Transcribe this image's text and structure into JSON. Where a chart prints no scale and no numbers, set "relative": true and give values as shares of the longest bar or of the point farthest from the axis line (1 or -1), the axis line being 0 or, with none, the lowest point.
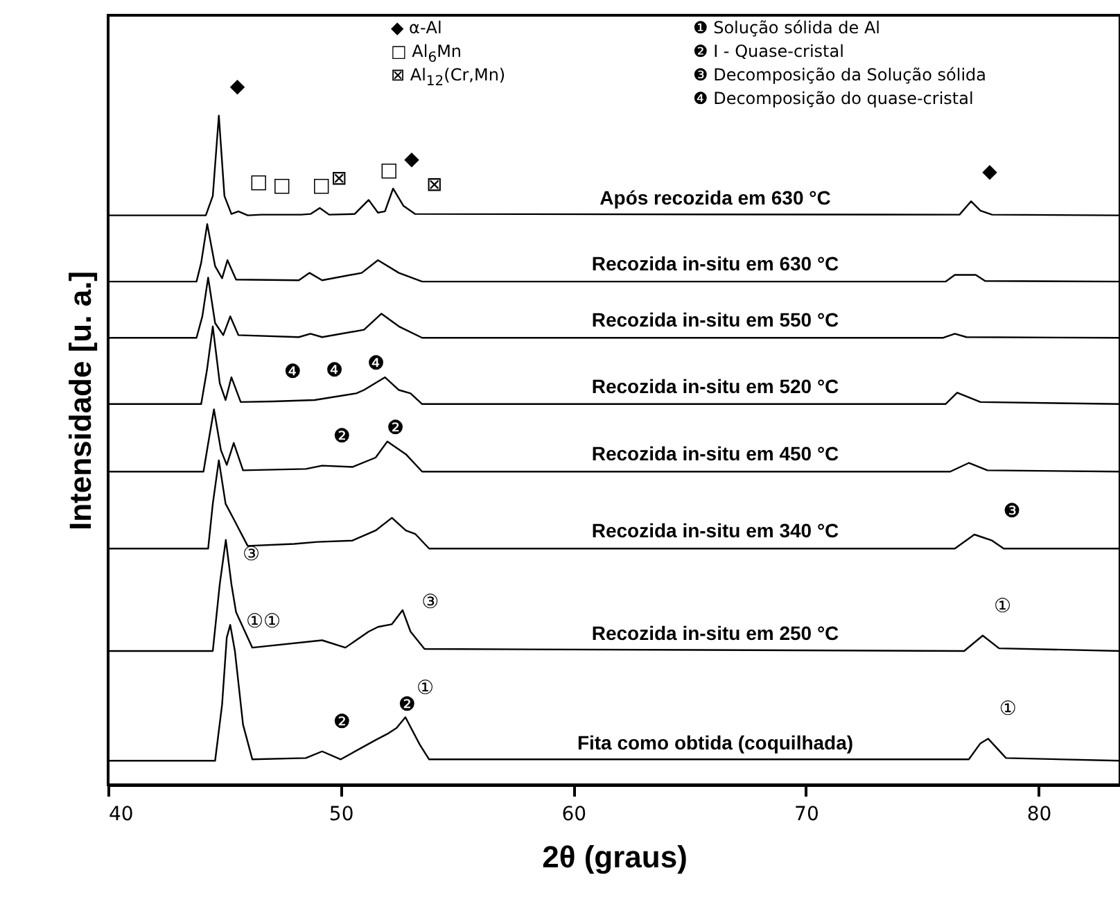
{
  "chart_data": {
    "type": "line",
    "relative": true,
    "xlabel": "2θ (graus)",
    "ylabel": "Intensidade [u. a.]",
    "xlim": [
      40,
      83.5
    ],
    "xticks": [
      40,
      50,
      60,
      70,
      80
    ],
    "series": [
      {
        "name": "Após recozida em 630 °C",
        "color": "#000000",
        "x": [
          40,
          44.2,
          44.5,
          44.76,
          45.0,
          45.3,
          45.6,
          46.0,
          46.6,
          48.3,
          48.7,
          49.1,
          49.5,
          50.6,
          51.2,
          51.6,
          51.9,
          52.25,
          52.7,
          53.2,
          76.6,
          77.1,
          77.5,
          78.0,
          83.5
        ],
        "values": [
          0.851,
          0.851,
          0.88,
          1.0,
          0.88,
          0.853,
          0.857,
          0.851,
          0.852,
          0.852,
          0.853,
          0.862,
          0.852,
          0.853,
          0.874,
          0.855,
          0.857,
          0.891,
          0.865,
          0.853,
          0.852,
          0.872,
          0.858,
          0.852,
          0.851
        ]
      },
      {
        "name": "Recozida in-situ em 630 °C",
        "color": "#000000",
        "x": [
          40,
          43.8,
          44.0,
          44.26,
          44.6,
          44.9,
          45.13,
          45.5,
          48.2,
          48.66,
          49.2,
          50.9,
          51.6,
          52.5,
          53.5,
          76.0,
          76.4,
          77.3,
          77.7,
          83.5
        ],
        "values": [
          0.752,
          0.752,
          0.78,
          0.838,
          0.775,
          0.757,
          0.784,
          0.755,
          0.754,
          0.765,
          0.754,
          0.765,
          0.784,
          0.765,
          0.752,
          0.752,
          0.762,
          0.762,
          0.753,
          0.752
        ]
      },
      {
        "name": "Recozida in-situ em 550 °C",
        "color": "#000000",
        "x": [
          40,
          43.8,
          44.05,
          44.3,
          44.6,
          44.95,
          45.25,
          45.6,
          48.2,
          48.7,
          49.2,
          51.0,
          51.75,
          52.5,
          53.5,
          75.9,
          76.4,
          76.9,
          83.5
        ],
        "values": [
          0.668,
          0.668,
          0.7,
          0.758,
          0.69,
          0.672,
          0.7,
          0.672,
          0.669,
          0.674,
          0.669,
          0.68,
          0.704,
          0.685,
          0.668,
          0.668,
          0.674,
          0.669,
          0.668
        ]
      },
      {
        "name": "Recozida in-situ em 520 °C",
        "color": "#000000",
        "x": [
          40,
          44.0,
          44.25,
          44.5,
          44.8,
          45.05,
          45.3,
          45.7,
          47.08,
          48.88,
          50.67,
          51.0,
          51.9,
          52.5,
          53.0,
          53.5,
          76.0,
          76.5,
          77.5,
          83.5
        ],
        "values": [
          0.569,
          0.569,
          0.62,
          0.685,
          0.6,
          0.575,
          0.609,
          0.572,
          0.573,
          0.575,
          0.585,
          0.59,
          0.609,
          0.59,
          0.585,
          0.569,
          0.569,
          0.586,
          0.572,
          0.569
        ]
      },
      {
        "name": "Recozida in-situ em 450 °C",
        "color": "#000000",
        "x": [
          40,
          44.1,
          44.3,
          44.55,
          44.85,
          45.1,
          45.4,
          45.8,
          48.5,
          49.2,
          50.5,
          51.5,
          52.0,
          52.8,
          53.5,
          76.2,
          77.0,
          77.8,
          83.5
        ],
        "values": [
          0.468,
          0.468,
          0.51,
          0.561,
          0.5,
          0.478,
          0.511,
          0.47,
          0.472,
          0.477,
          0.475,
          0.489,
          0.513,
          0.494,
          0.468,
          0.468,
          0.481,
          0.47,
          0.468
        ]
      },
      {
        "name": "Recozida in-situ em 340 °C",
        "color": "#000000",
        "x": [
          40,
          44.3,
          44.5,
          44.76,
          45.05,
          45.4,
          46.0,
          48.0,
          49.0,
          50.5,
          51.5,
          52.2,
          52.8,
          53.2,
          53.8,
          76.4,
          77.24,
          78.0,
          78.5,
          83.5
        ],
        "values": [
          0.353,
          0.353,
          0.42,
          0.485,
          0.42,
          0.397,
          0.357,
          0.36,
          0.363,
          0.365,
          0.38,
          0.399,
          0.38,
          0.375,
          0.353,
          0.353,
          0.374,
          0.365,
          0.353,
          0.353
        ]
      },
      {
        "name": "Recozida in-situ em 250 °C",
        "color": "#000000",
        "x": [
          40,
          44.5,
          44.8,
          45.06,
          45.3,
          45.5,
          46.2,
          49.2,
          50.2,
          51.2,
          51.6,
          52.2,
          52.66,
          53.0,
          53.6,
          76.8,
          77.6,
          78.3,
          83.5
        ],
        "values": [
          0.2,
          0.2,
          0.3,
          0.366,
          0.3,
          0.258,
          0.205,
          0.216,
          0.205,
          0.229,
          0.236,
          0.24,
          0.261,
          0.229,
          0.203,
          0.2,
          0.223,
          0.204,
          0.2
        ]
      },
      {
        "name": "Fita como obtida (coquilhada)",
        "color": "#000000",
        "x": [
          40,
          44.6,
          44.9,
          45.1,
          45.25,
          45.45,
          45.8,
          46.2,
          48.5,
          49.2,
          50.0,
          51.5,
          52.0,
          52.4,
          52.78,
          53.4,
          53.8,
          77.0,
          77.5,
          77.83,
          78.6,
          83.5
        ],
        "values": [
          0.036,
          0.036,
          0.12,
          0.22,
          0.239,
          0.2,
          0.09,
          0.038,
          0.04,
          0.05,
          0.038,
          0.067,
          0.076,
          0.085,
          0.101,
          0.06,
          0.038,
          0.038,
          0.062,
          0.069,
          0.04,
          0.036
        ]
      }
    ],
    "annotations": [
      "◆ α-Al",
      "□ Al$_{6}$Mn",
      "⊠ Al$_{12}$(Cr,Mn)",
      "❶ Solução sólida de Al",
      "❷ I - Quase-cristal",
      "❸ Decomposição da Solução sólida",
      "❹ Decomposição do quase-cristal",
      {
        "text": "◆",
        "x": 44.76,
        "y": 1.0
      },
      {
        "text": "□",
        "x": 45.6,
        "y": 0.857
      },
      {
        "text": "□",
        "x": 46.6,
        "y": 0.852
      },
      {
        "text": "□",
        "x": 48.3,
        "y": 0.852
      },
      {
        "text": "⊠",
        "x": 49.1,
        "y": 0.862
      },
      {
        "text": "□",
        "x": 51.2,
        "y": 0.874
      },
      {
        "text": "◆",
        "x": 52.25,
        "y": 0.891
      },
      {
        "text": "⊠",
        "x": 53.2,
        "y": 0.853
      },
      {
        "text": "◆",
        "x": 77.1,
        "y": 0.872
      },
      {
        "text": "❹",
        "x": 47.08,
        "y": 0.573
      },
      {
        "text": "❹",
        "x": 48.88,
        "y": 0.575
      },
      {
        "text": "❹",
        "x": 50.67,
        "y": 0.585
      },
      {
        "text": "❷",
        "x": 49.2,
        "y": 0.477
      },
      {
        "text": "❷",
        "x": 51.5,
        "y": 0.489
      },
      {
        "text": "❸",
        "x": 78.0,
        "y": 0.365
      },
      {
        "text": "③",
        "x": 45.3,
        "y": 0.3
      },
      {
        "text": "③",
        "x": 53.0,
        "y": 0.229
      },
      {
        "text": "①",
        "x": 77.6,
        "y": 0.223
      },
      {
        "text": "①①",
        "x": 45.45,
        "y": 0.2
      },
      {
        "text": "❷",
        "x": 49.2,
        "y": 0.05
      },
      {
        "text": "❷",
        "x": 52.0,
        "y": 0.076
      },
      {
        "text": "①",
        "x": 52.78,
        "y": 0.101
      },
      {
        "text": "①",
        "x": 77.83,
        "y": 0.069
      }
    ]
  }
}
